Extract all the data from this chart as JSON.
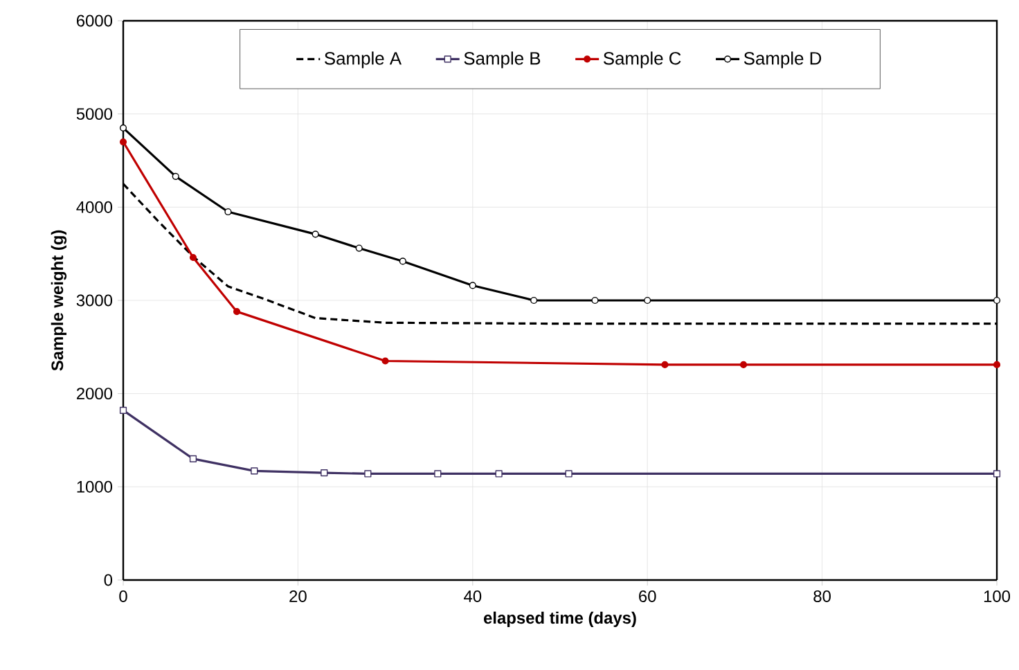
{
  "chart_data": {
    "type": "line",
    "xlabel": "elapsed time (days)",
    "ylabel": "Sample weight (g)",
    "xlim": [
      0,
      100
    ],
    "xticks": [
      0,
      20,
      40,
      60,
      80,
      100
    ],
    "ylim": [
      0,
      6000
    ],
    "yticks": [
      0,
      1000,
      2000,
      3000,
      4000,
      5000,
      6000
    ],
    "grid": true,
    "legend": "top",
    "series": [
      {
        "name": "Sample A",
        "color": "#000000",
        "marker": "none",
        "line_style": "dashed",
        "x": [
          0,
          4,
          8,
          12,
          16,
          22,
          30,
          50,
          100
        ],
        "values": [
          4250,
          3850,
          3470,
          3150,
          3020,
          2810,
          2760,
          2750,
          2750
        ]
      },
      {
        "name": "Sample B",
        "color": "#3f3163",
        "marker": "square",
        "line_style": "solid",
        "x": [
          0,
          8,
          15,
          23,
          28,
          36,
          43,
          51,
          100
        ],
        "values": [
          1820,
          1300,
          1170,
          1150,
          1140,
          1140,
          1140,
          1140,
          1140
        ]
      },
      {
        "name": "Sample C",
        "color": "#c00000",
        "marker": "circle",
        "line_style": "solid",
        "x": [
          0,
          8,
          13,
          30,
          62,
          71,
          100
        ],
        "values": [
          4700,
          3460,
          2880,
          2350,
          2310,
          2310,
          2310
        ]
      },
      {
        "name": "Sample D",
        "color": "#000000",
        "marker": "circle",
        "line_style": "solid",
        "x": [
          0,
          6,
          12,
          22,
          27,
          32,
          40,
          47,
          54,
          60,
          100
        ],
        "values": [
          4850,
          4330,
          3950,
          3710,
          3560,
          3420,
          3160,
          3000,
          3000,
          3000,
          3000
        ]
      }
    ]
  }
}
